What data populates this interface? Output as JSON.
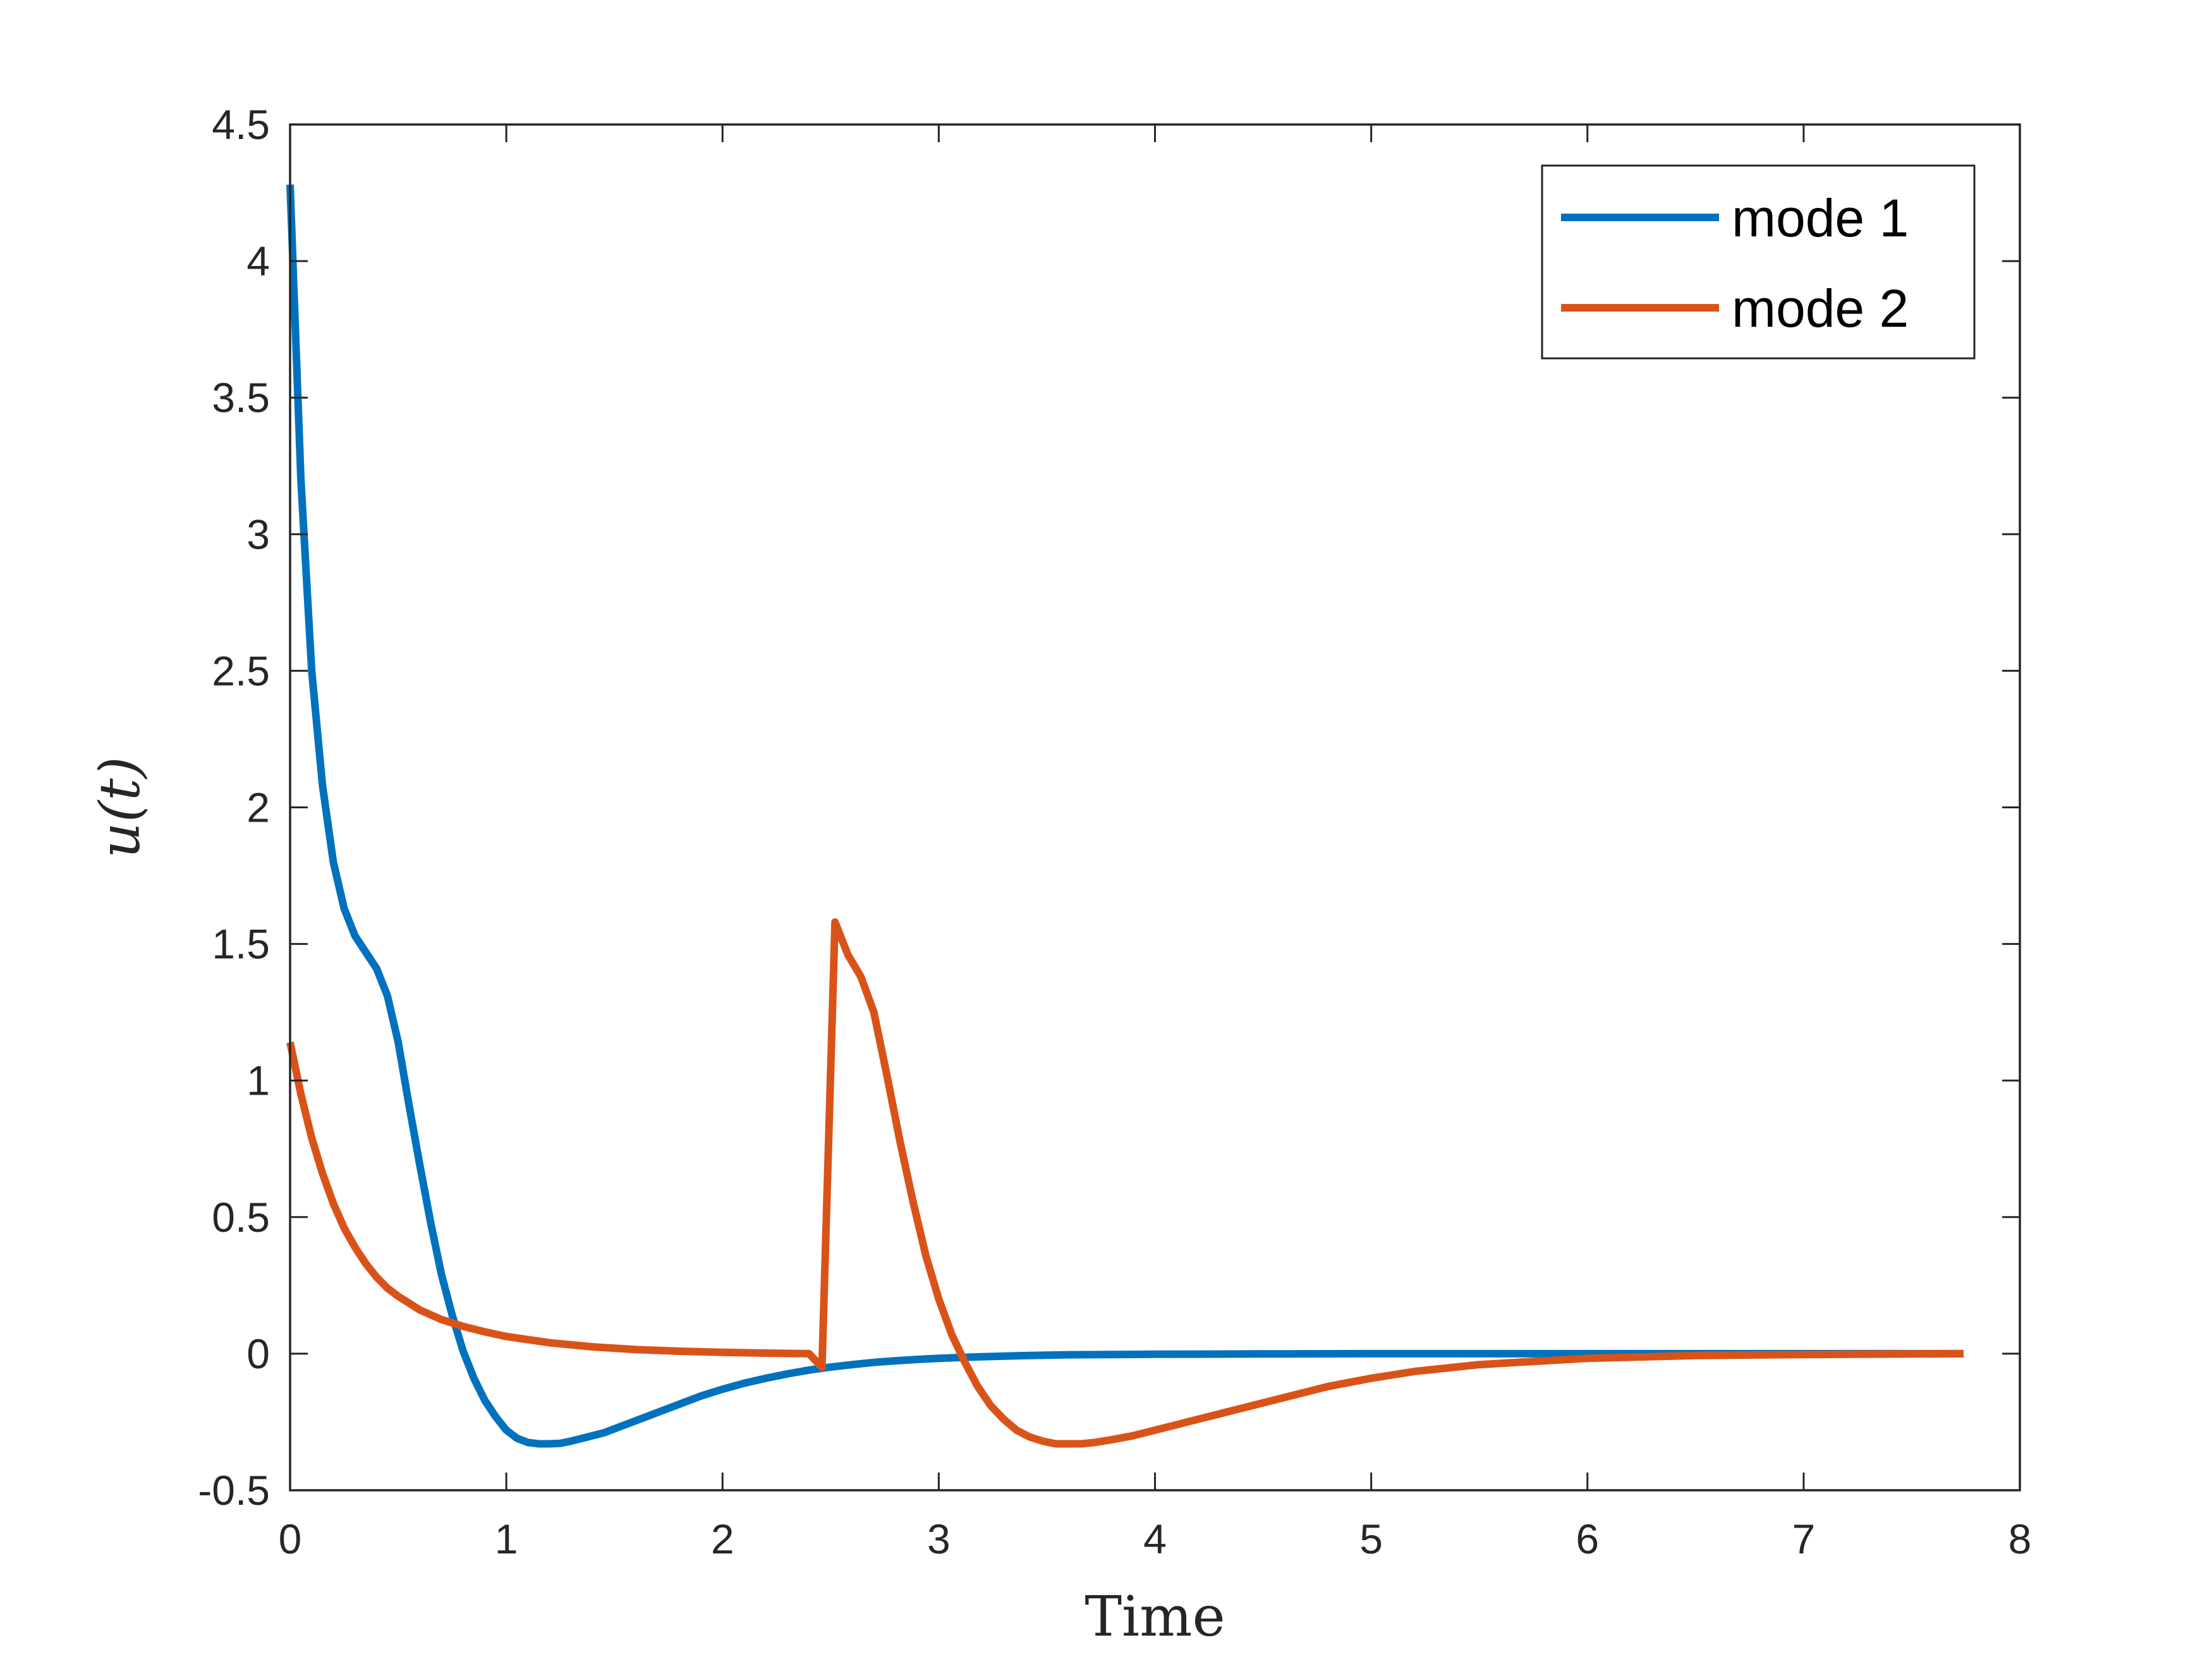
{
  "chart_data": {
    "type": "line",
    "title": "",
    "xlabel": "Time",
    "ylabel": "u(t)",
    "xlim": [
      0,
      8
    ],
    "ylim": [
      -0.5,
      4.5
    ],
    "xticks": [
      "0",
      "1",
      "2",
      "3",
      "4",
      "5",
      "6",
      "7",
      "8"
    ],
    "yticks": [
      "-0.5",
      "0",
      "0.5",
      "1",
      "1.5",
      "2",
      "2.5",
      "3",
      "3.5",
      "4",
      "4.5"
    ],
    "grid": false,
    "legend": "top-right",
    "series": [
      {
        "name": "mode 1",
        "color": "#0072BD",
        "x": [
          0,
          0.05,
          0.1,
          0.15,
          0.2,
          0.25,
          0.3,
          0.35,
          0.4,
          0.45,
          0.5,
          0.55,
          0.6,
          0.65,
          0.7,
          0.75,
          0.8,
          0.85,
          0.9,
          0.95,
          1.0,
          1.05,
          1.1,
          1.15,
          1.2,
          1.25,
          1.3,
          1.35,
          1.4,
          1.45,
          1.5,
          1.6,
          1.7,
          1.8,
          1.9,
          2.0,
          2.1,
          2.2,
          2.3,
          2.4,
          2.5,
          2.6,
          2.7,
          2.8,
          2.9,
          3.0,
          3.2,
          3.4,
          3.6,
          3.8,
          4.0,
          4.5,
          5.0,
          5.5,
          6.0,
          6.5,
          7.0,
          7.5,
          7.74
        ],
        "y": [
          4.28,
          3.2,
          2.5,
          2.08,
          1.8,
          1.63,
          1.53,
          1.47,
          1.41,
          1.31,
          1.14,
          0.91,
          0.69,
          0.48,
          0.29,
          0.14,
          0.01,
          -0.09,
          -0.17,
          -0.23,
          -0.28,
          -0.31,
          -0.325,
          -0.33,
          -0.33,
          -0.328,
          -0.32,
          -0.31,
          -0.3,
          -0.29,
          -0.275,
          -0.245,
          -0.215,
          -0.185,
          -0.155,
          -0.13,
          -0.108,
          -0.09,
          -0.074,
          -0.06,
          -0.049,
          -0.04,
          -0.032,
          -0.026,
          -0.021,
          -0.017,
          -0.011,
          -0.007,
          -0.004,
          -0.003,
          -0.002,
          -0.001,
          0,
          0,
          0,
          0,
          0,
          0,
          0
        ]
      },
      {
        "name": "mode 2",
        "color": "#D95319",
        "x": [
          0,
          0.05,
          0.1,
          0.15,
          0.2,
          0.25,
          0.3,
          0.35,
          0.4,
          0.45,
          0.5,
          0.6,
          0.7,
          0.8,
          0.9,
          1.0,
          1.2,
          1.4,
          1.6,
          1.8,
          2.0,
          2.2,
          2.4,
          2.46,
          2.52,
          2.58,
          2.64,
          2.7,
          2.76,
          2.82,
          2.88,
          2.94,
          3.0,
          3.06,
          3.12,
          3.18,
          3.24,
          3.3,
          3.36,
          3.42,
          3.48,
          3.54,
          3.6,
          3.66,
          3.72,
          3.8,
          3.9,
          4.0,
          4.1,
          4.2,
          4.3,
          4.4,
          4.6,
          4.8,
          5.0,
          5.2,
          5.5,
          6.0,
          6.5,
          7.0,
          7.5,
          7.74
        ],
        "y": [
          1.14,
          0.95,
          0.79,
          0.66,
          0.55,
          0.46,
          0.39,
          0.33,
          0.28,
          0.24,
          0.21,
          0.16,
          0.125,
          0.1,
          0.08,
          0.063,
          0.04,
          0.025,
          0.015,
          0.009,
          0.005,
          0.002,
          0.0,
          -0.05,
          1.58,
          1.46,
          1.38,
          1.25,
          1.02,
          0.78,
          0.56,
          0.36,
          0.2,
          0.07,
          -0.03,
          -0.12,
          -0.19,
          -0.24,
          -0.28,
          -0.305,
          -0.32,
          -0.33,
          -0.33,
          -0.33,
          -0.325,
          -0.315,
          -0.3,
          -0.28,
          -0.26,
          -0.24,
          -0.22,
          -0.2,
          -0.16,
          -0.12,
          -0.09,
          -0.065,
          -0.04,
          -0.017,
          -0.007,
          -0.003,
          -0.001,
          0
        ]
      }
    ]
  }
}
